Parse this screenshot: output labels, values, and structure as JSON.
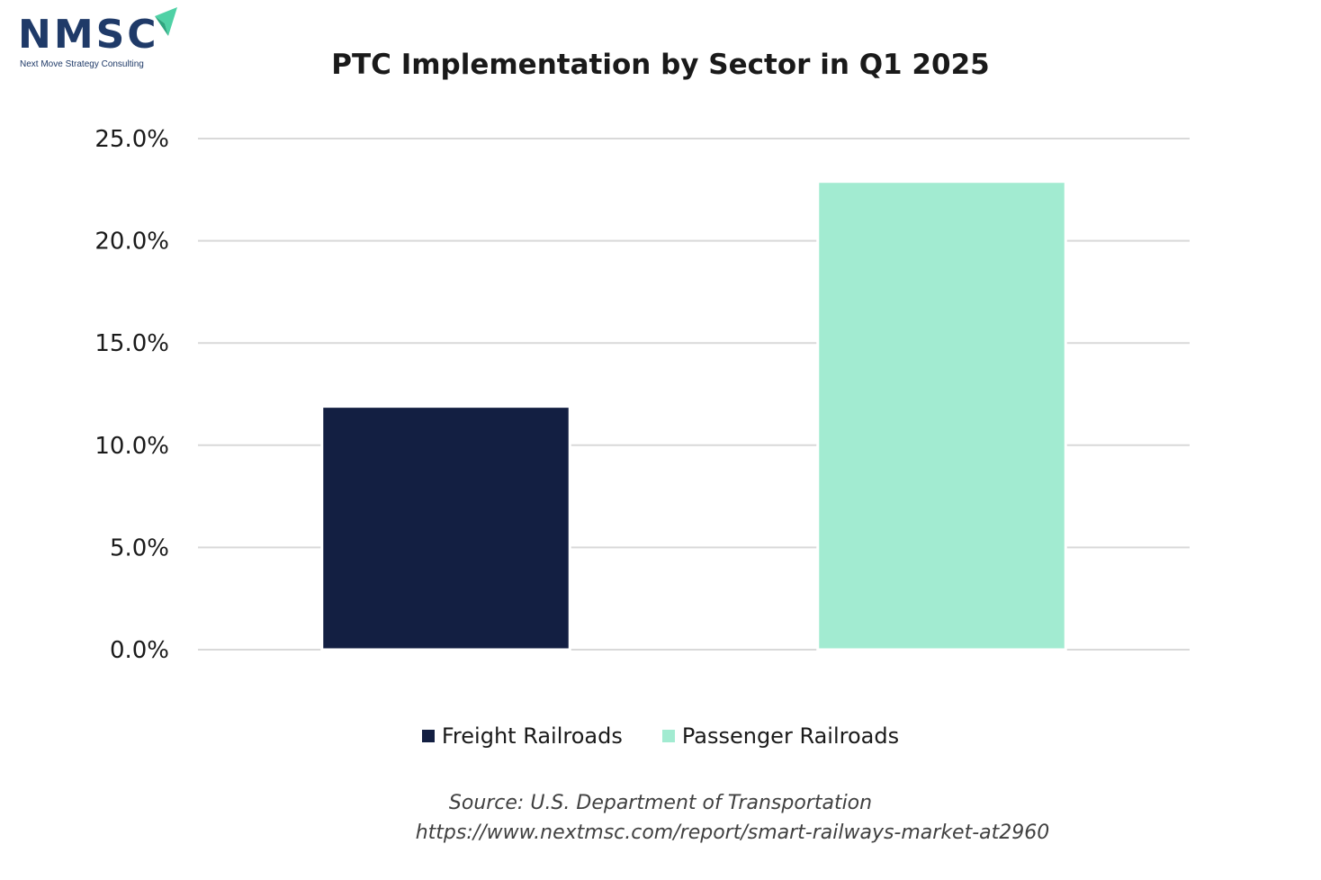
{
  "logo": {
    "text": "NMSC",
    "subtitle": "Next Move Strategy Consulting",
    "text_color": "#1f3a68",
    "arrow_color": "#4fd1a5",
    "arrow_icon": "paper-plane-icon"
  },
  "chart_data": {
    "type": "bar",
    "title": "PTC Implementation by Sector in Q1 2025",
    "xlabel": "",
    "ylabel": "",
    "ylim": [
      0,
      25
    ],
    "yticks": [
      "0.0%",
      "5.0%",
      "10.0%",
      "15.0%",
      "20.0%",
      "25.0%"
    ],
    "ytick_values": [
      0,
      5,
      10,
      15,
      20,
      25
    ],
    "grid": true,
    "legend_position": "bottom",
    "series": [
      {
        "name": "Freight Railroads",
        "values": [
          11.9
        ],
        "color": "#131f42"
      },
      {
        "name": "Passenger Railroads",
        "values": [
          22.9
        ],
        "color": "#a2ebd1"
      }
    ]
  },
  "source": {
    "line1": "Source: U.S. Department of Transportation",
    "line2": "https://www.nextmsc.com/report/smart-railways-market-at2960"
  }
}
